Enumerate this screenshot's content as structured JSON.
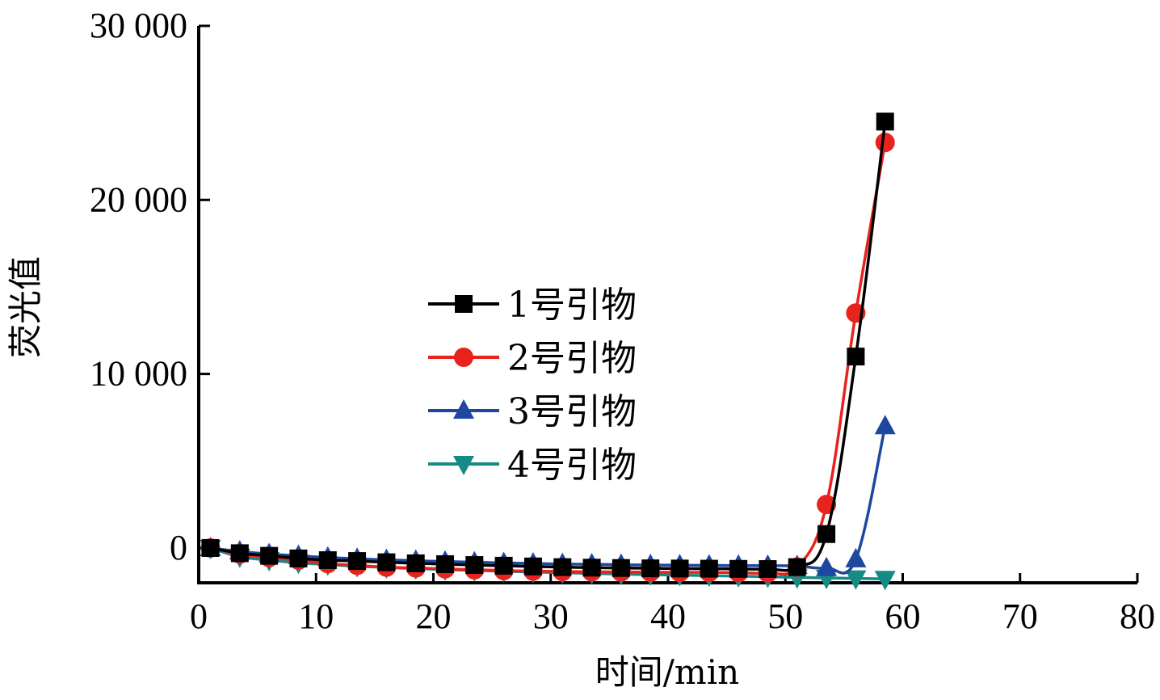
{
  "chart_data": {
    "type": "line",
    "title": "",
    "xlabel": "时间/min",
    "ylabel": "荧光值",
    "xlim": [
      0,
      80
    ],
    "ylim": [
      -2000,
      30000
    ],
    "x_ticks": [
      0,
      10,
      20,
      30,
      40,
      50,
      60,
      70,
      80
    ],
    "x_tick_labels": [
      "0",
      "10",
      "20",
      "30",
      "40",
      "50",
      "60",
      "70",
      "80"
    ],
    "y_ticks": [
      0,
      10000,
      20000,
      30000
    ],
    "y_tick_labels": [
      "0",
      "10 000",
      "20 000",
      "30 000"
    ],
    "grid": false,
    "legend_position": "center-left",
    "series": [
      {
        "name": "1号引物",
        "color": "#000000",
        "marker": "square",
        "x": [
          1,
          3.5,
          6,
          8.5,
          11,
          13.5,
          16,
          18.5,
          21,
          23.5,
          26,
          28.5,
          31,
          33.5,
          36,
          38.5,
          41,
          43.5,
          46,
          48.5,
          51,
          53.5,
          56,
          58.5
        ],
        "y": [
          0,
          -300,
          -450,
          -600,
          -700,
          -750,
          -820,
          -880,
          -930,
          -980,
          -1020,
          -1060,
          -1100,
          -1130,
          -1150,
          -1170,
          -1180,
          -1190,
          -1200,
          -1210,
          -1100,
          800,
          11000,
          24500
        ]
      },
      {
        "name": "2号引物",
        "color": "#e8231e",
        "marker": "circle",
        "x": [
          1,
          3.5,
          6,
          8.5,
          11,
          13.5,
          16,
          18.5,
          21,
          23.5,
          26,
          28.5,
          31,
          33.5,
          36,
          38.5,
          41,
          43.5,
          46,
          48.5,
          51,
          53.5,
          56,
          58.5
        ],
        "y": [
          0,
          -350,
          -550,
          -700,
          -900,
          -1000,
          -1100,
          -1150,
          -1200,
          -1250,
          -1300,
          -1330,
          -1350,
          -1370,
          -1380,
          -1390,
          -1400,
          -1400,
          -1420,
          -1430,
          -1100,
          2500,
          13500,
          23300
        ]
      },
      {
        "name": "3号引物",
        "color": "#1e47a0",
        "marker": "triangle-up",
        "x": [
          1,
          3.5,
          6,
          8.5,
          11,
          13.5,
          16,
          18.5,
          21,
          23.5,
          26,
          28.5,
          31,
          33.5,
          36,
          38.5,
          41,
          43.5,
          46,
          48.5,
          51,
          53.5,
          56,
          58.5
        ],
        "y": [
          0,
          -200,
          -350,
          -450,
          -550,
          -620,
          -680,
          -730,
          -780,
          -820,
          -860,
          -890,
          -920,
          -940,
          -960,
          -980,
          -990,
          -1000,
          -1010,
          -1020,
          -1030,
          -1150,
          -650,
          7000
        ]
      },
      {
        "name": "4号引物",
        "color": "#168a84",
        "marker": "triangle-down",
        "x": [
          1,
          3.5,
          6,
          8.5,
          11,
          13.5,
          16,
          18.5,
          21,
          23.5,
          26,
          28.5,
          31,
          33.5,
          36,
          38.5,
          41,
          43.5,
          46,
          48.5,
          51,
          53.5,
          56,
          58.5
        ],
        "y": [
          0,
          -500,
          -700,
          -850,
          -950,
          -1050,
          -1120,
          -1180,
          -1240,
          -1290,
          -1340,
          -1380,
          -1420,
          -1460,
          -1500,
          -1530,
          -1560,
          -1590,
          -1620,
          -1650,
          -1690,
          -1720,
          -1750,
          -1780
        ]
      }
    ]
  }
}
